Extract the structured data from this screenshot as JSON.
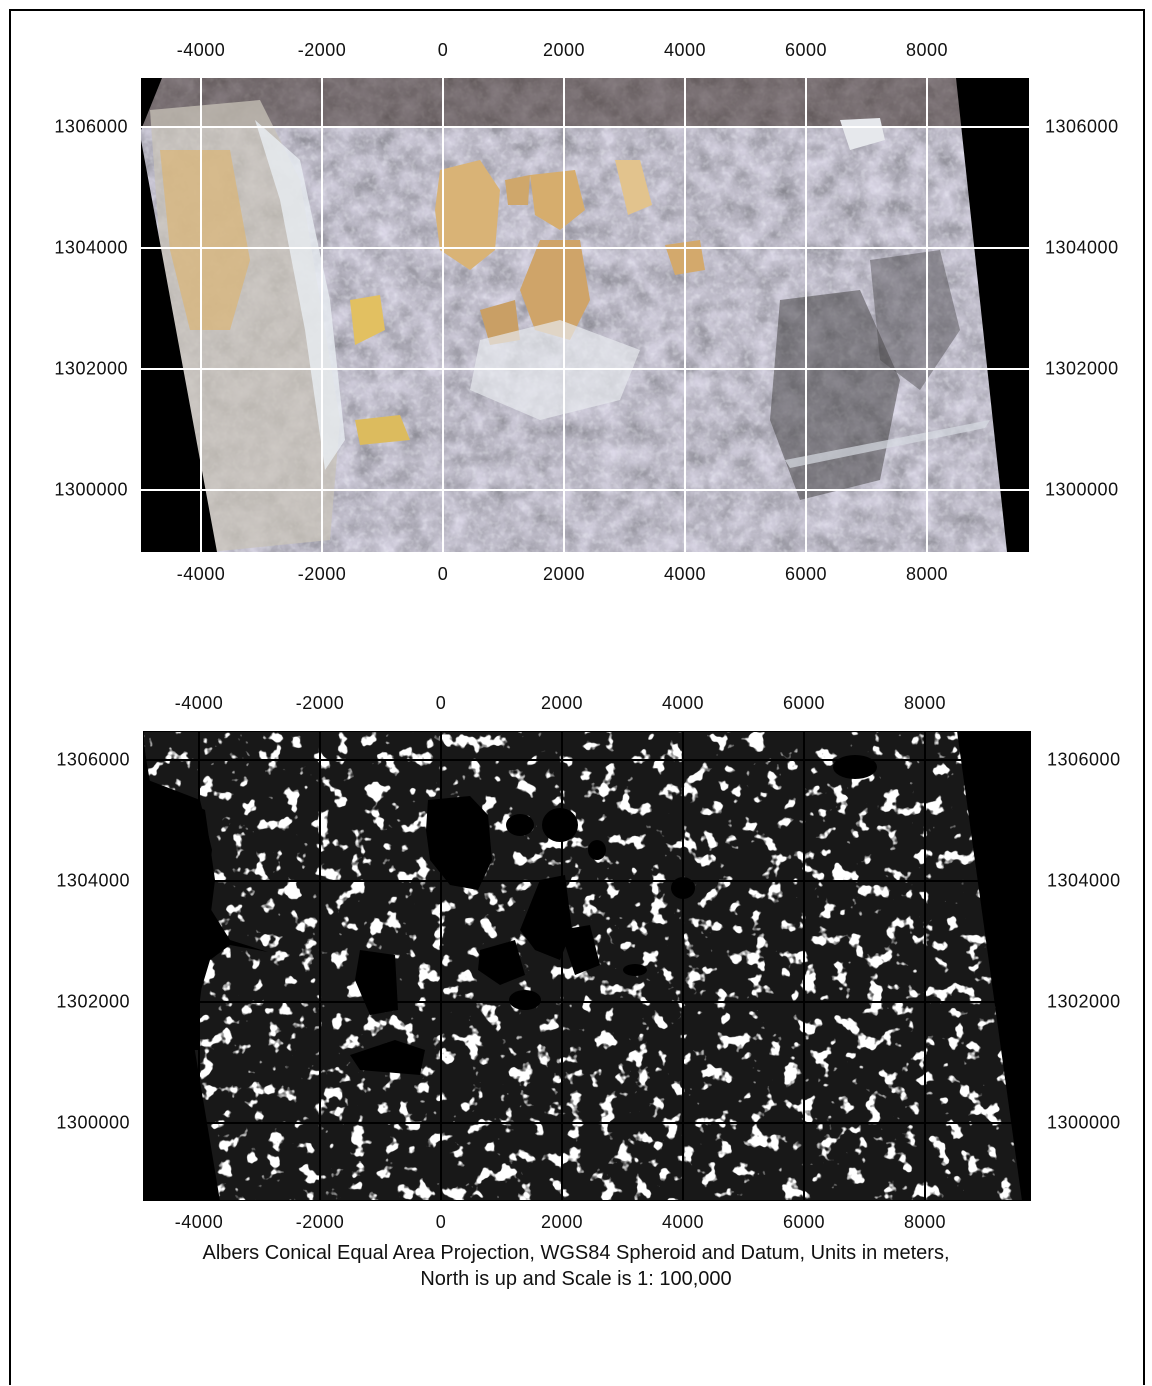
{
  "top_map": {
    "type": "rgb-satellite-image",
    "x_ticks": [
      "-4000",
      "-2000",
      "0",
      "2000",
      "4000",
      "6000",
      "8000"
    ],
    "y_ticks": [
      "1306000",
      "1304000",
      "1302000",
      "1300000"
    ],
    "grid_color": "#ffffff"
  },
  "bottom_map": {
    "type": "binary-classification-map",
    "x_ticks": [
      "-4000",
      "-2000",
      "0",
      "2000",
      "4000",
      "6000",
      "8000"
    ],
    "y_ticks": [
      "1306000",
      "1304000",
      "1302000",
      "1300000"
    ],
    "grid_color": "#000000"
  },
  "caption": {
    "line1": "Albers Conical Equal Area Projection, WGS84 Spheroid and Datum, Units in meters,",
    "line2": "North is up and Scale is 1: 100,000"
  },
  "colors": {
    "nodata": "#000000",
    "playa": "#d9b376",
    "vegetation_dark": "#4a4640",
    "bright_soil": "#c9ccd3"
  }
}
